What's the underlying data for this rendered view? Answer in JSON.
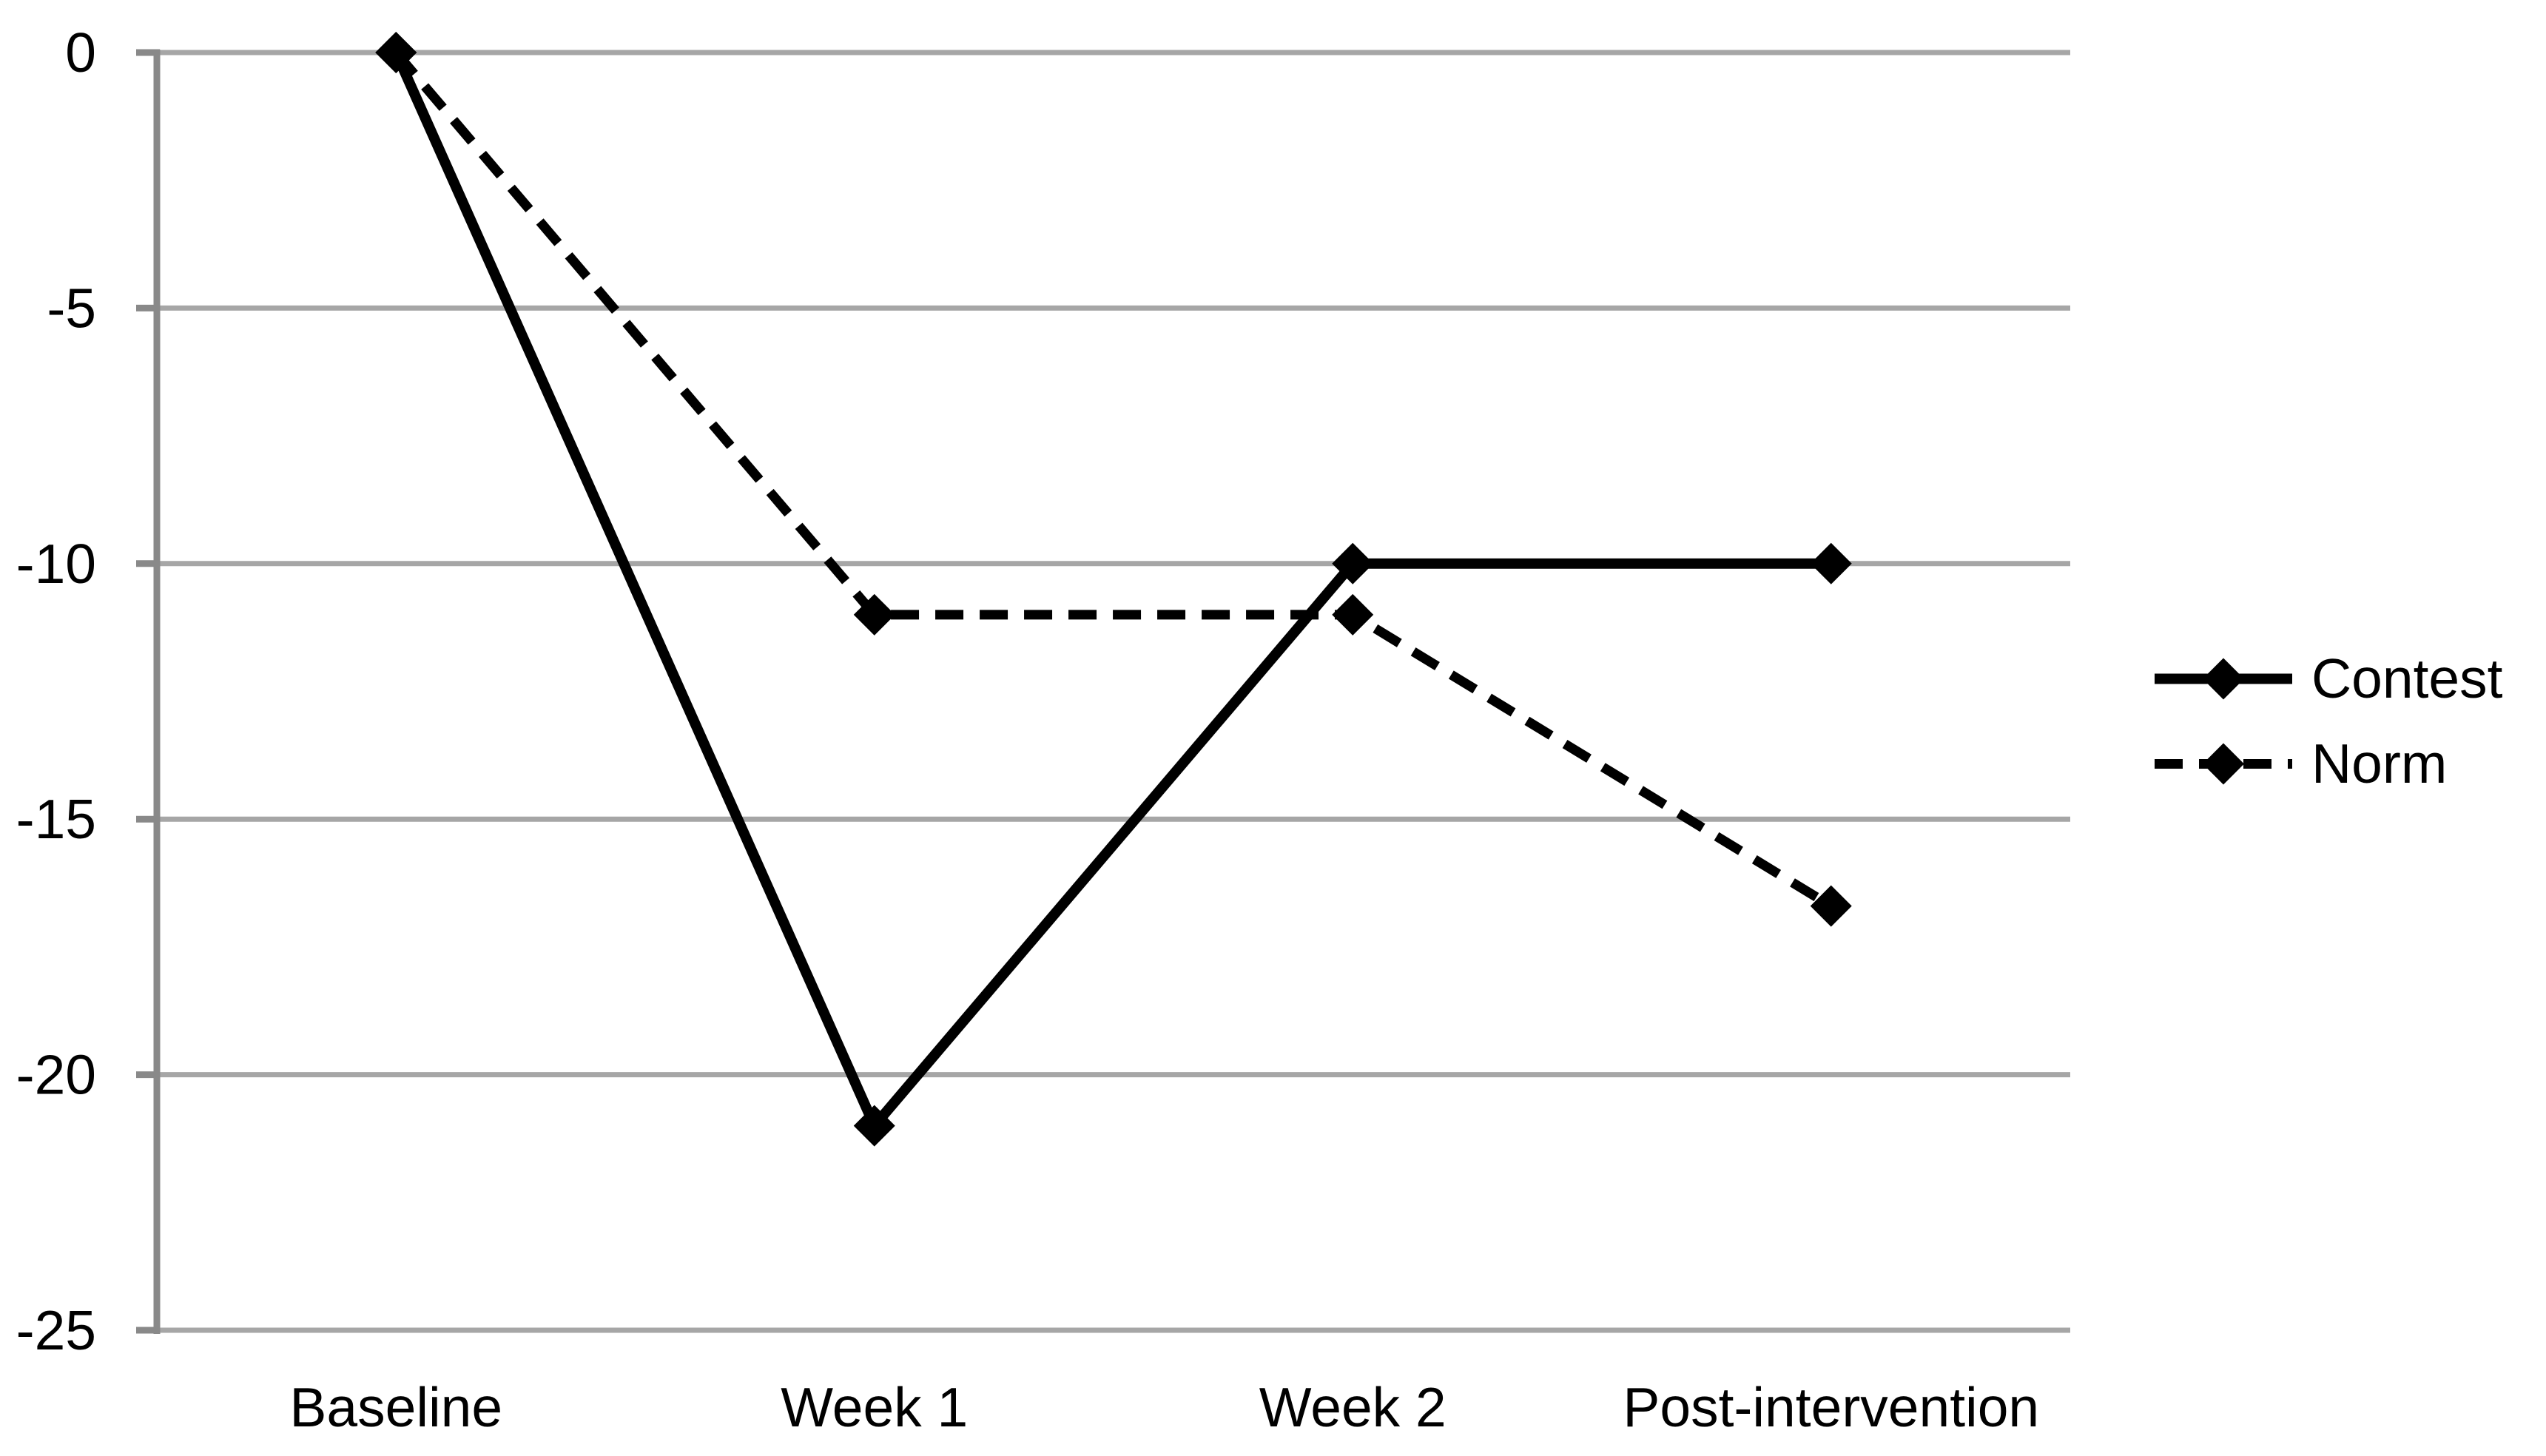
{
  "chart_data": {
    "type": "line",
    "title": "",
    "xlabel": "",
    "ylabel": "",
    "categories": [
      "Baseline",
      "Week 1",
      "Week 2",
      "Post-intervention"
    ],
    "series": [
      {
        "name": "Contest",
        "values": [
          0,
          -21,
          -10,
          -10
        ],
        "line_style": "solid",
        "marker": "diamond",
        "color": "#000000"
      },
      {
        "name": "Norm",
        "values": [
          0,
          -11,
          -11,
          -16.7
        ],
        "line_style": "dashed",
        "marker": "diamond",
        "color": "#000000"
      }
    ],
    "ylim": [
      -25,
      0
    ],
    "ytick_interval": 5,
    "ytick_labels": [
      "0",
      "-5",
      "-10",
      "-15",
      "-20",
      "-25"
    ],
    "grid": true,
    "legend_position": "right-middle",
    "colors": {
      "series_line": "#000000",
      "gridline": "#a6a6a6",
      "axis": "#898989",
      "text": "#000000",
      "background": "#ffffff"
    }
  }
}
